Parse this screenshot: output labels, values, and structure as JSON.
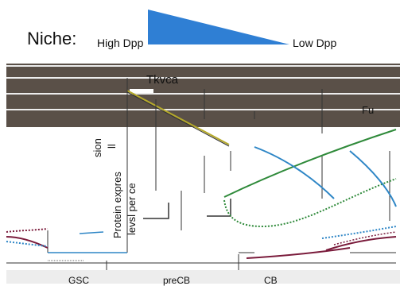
{
  "niche": {
    "label": "Niche:",
    "high": "High Dpp",
    "low": "Low Dpp",
    "wedge_color": "#2f7fd4"
  },
  "band": {
    "label": "Tkvca",
    "right_label": "Fu",
    "background": "#5a5048"
  },
  "axis": {
    "ylabel_parts": [
      "sion",
      "ll",
      "Protein expres",
      "levsl per ce"
    ]
  },
  "bottom": {
    "labels": [
      "GSC",
      "preCB",
      "CB"
    ]
  },
  "colors": {
    "yellow": "#b5a92a",
    "green": "#2f8a3a",
    "blue": "#2e86c6",
    "maroon": "#7a1b3b",
    "dark": "#333333"
  }
}
